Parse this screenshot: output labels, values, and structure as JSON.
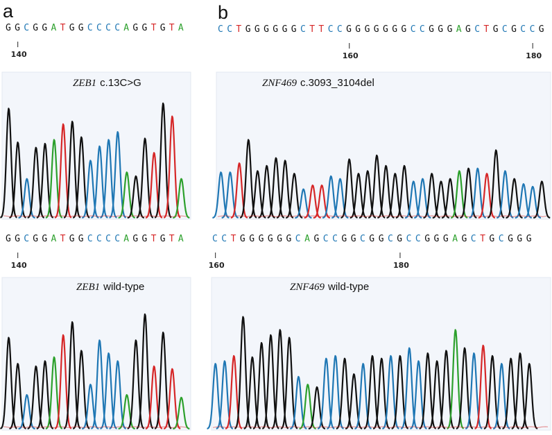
{
  "chart_data": [
    {
      "type": "line",
      "panel": "a",
      "title_gene": "ZEB1",
      "title_variant": "c.13C>G",
      "sequence": "GGCGGATGGCCCCAGGTGTA",
      "ticks": [
        {
          "base": 140,
          "index": 1
        }
      ],
      "colors": {
        "A": "#2ca02c",
        "C": "#1f77b4",
        "G": "#111111",
        "T": "#d62728"
      },
      "peaks": [
        {
          "base": "G",
          "h": 0.84
        },
        {
          "base": "G",
          "h": 0.58
        },
        {
          "base": "C",
          "h": 0.3
        },
        {
          "base": "G",
          "h": 0.54
        },
        {
          "base": "G",
          "h": 0.57
        },
        {
          "base": "A",
          "h": 0.6
        },
        {
          "base": "T",
          "h": 0.72
        },
        {
          "base": "G",
          "h": 0.74
        },
        {
          "base": "G",
          "h": 0.62
        },
        {
          "base": "C",
          "h": 0.44
        },
        {
          "base": "C",
          "h": 0.55
        },
        {
          "base": "C",
          "h": 0.6
        },
        {
          "base": "C",
          "h": 0.66
        },
        {
          "base": "A",
          "h": 0.35
        },
        {
          "base": "G",
          "h": 0.32
        },
        {
          "base": "G",
          "h": 0.61
        },
        {
          "base": "T",
          "h": 0.5
        },
        {
          "base": "G",
          "h": 0.88
        },
        {
          "base": "T",
          "h": 0.78
        },
        {
          "base": "A",
          "h": 0.3
        }
      ]
    },
    {
      "type": "line",
      "panel": "b",
      "title_gene": "ZNF469",
      "title_variant": "c.3093_3104del",
      "sequence": "CCTGGGGGGCTTCCGGGGGGGCCGGGAGCTGCGCCG",
      "ticks": [
        {
          "base": 160,
          "index": 14
        },
        {
          "base": 180,
          "index": 34
        }
      ],
      "colors": {
        "A": "#2ca02c",
        "C": "#1f77b4",
        "G": "#111111",
        "T": "#d62728"
      },
      "peaks": [
        {
          "base": "C",
          "h": 0.35
        },
        {
          "base": "C",
          "h": 0.35
        },
        {
          "base": "T",
          "h": 0.42
        },
        {
          "base": "G",
          "h": 0.6
        },
        {
          "base": "G",
          "h": 0.36
        },
        {
          "base": "G",
          "h": 0.4
        },
        {
          "base": "G",
          "h": 0.46
        },
        {
          "base": "G",
          "h": 0.44
        },
        {
          "base": "G",
          "h": 0.34
        },
        {
          "base": "C",
          "h": 0.22
        },
        {
          "base": "T",
          "h": 0.25
        },
        {
          "base": "T",
          "h": 0.25
        },
        {
          "base": "C",
          "h": 0.32
        },
        {
          "base": "C",
          "h": 0.3
        },
        {
          "base": "G",
          "h": 0.45
        },
        {
          "base": "G",
          "h": 0.34
        },
        {
          "base": "G",
          "h": 0.36
        },
        {
          "base": "G",
          "h": 0.48
        },
        {
          "base": "G",
          "h": 0.4
        },
        {
          "base": "G",
          "h": 0.34
        },
        {
          "base": "G",
          "h": 0.4
        },
        {
          "base": "C",
          "h": 0.28
        },
        {
          "base": "C",
          "h": 0.3
        },
        {
          "base": "G",
          "h": 0.34
        },
        {
          "base": "G",
          "h": 0.28
        },
        {
          "base": "G",
          "h": 0.3
        },
        {
          "base": "A",
          "h": 0.36
        },
        {
          "base": "G",
          "h": 0.38
        },
        {
          "base": "C",
          "h": 0.38
        },
        {
          "base": "T",
          "h": 0.34
        },
        {
          "base": "G",
          "h": 0.52
        },
        {
          "base": "C",
          "h": 0.36
        },
        {
          "base": "G",
          "h": 0.3
        },
        {
          "base": "C",
          "h": 0.26
        },
        {
          "base": "C",
          "h": 0.24
        },
        {
          "base": "G",
          "h": 0.28
        }
      ]
    },
    {
      "type": "line",
      "panel": "a",
      "title_gene": "ZEB1",
      "title_variant": "wild-type",
      "sequence": "GGCGGATGGCCCCAGGTGTA",
      "ticks": [
        {
          "base": 140,
          "index": 1
        }
      ],
      "colors": {
        "A": "#2ca02c",
        "C": "#1f77b4",
        "G": "#111111",
        "T": "#d62728"
      },
      "peaks": [
        {
          "base": "G",
          "h": 0.7
        },
        {
          "base": "G",
          "h": 0.5
        },
        {
          "base": "C",
          "h": 0.26
        },
        {
          "base": "G",
          "h": 0.48
        },
        {
          "base": "G",
          "h": 0.52
        },
        {
          "base": "A",
          "h": 0.55
        },
        {
          "base": "T",
          "h": 0.72
        },
        {
          "base": "G",
          "h": 0.82
        },
        {
          "base": "G",
          "h": 0.6
        },
        {
          "base": "C",
          "h": 0.34
        },
        {
          "base": "C",
          "h": 0.68
        },
        {
          "base": "C",
          "h": 0.58
        },
        {
          "base": "C",
          "h": 0.52
        },
        {
          "base": "A",
          "h": 0.26
        },
        {
          "base": "G",
          "h": 0.68
        },
        {
          "base": "G",
          "h": 0.88
        },
        {
          "base": "T",
          "h": 0.48
        },
        {
          "base": "G",
          "h": 0.74
        },
        {
          "base": "T",
          "h": 0.46
        },
        {
          "base": "A",
          "h": 0.24
        }
      ]
    },
    {
      "type": "line",
      "panel": "b",
      "title_gene": "ZNF469",
      "title_variant": "wild-type",
      "sequence": "CCTGGGGGGCAGCCGGCGGCGCCGGGAGCTGCGGG",
      "ticks": [
        {
          "base": 160,
          "index": 0
        },
        {
          "base": 180,
          "index": 20
        }
      ],
      "colors": {
        "A": "#2ca02c",
        "C": "#1f77b4",
        "G": "#111111",
        "T": "#d62728"
      },
      "peaks": [
        {
          "base": "C",
          "h": 0.5
        },
        {
          "base": "C",
          "h": 0.52
        },
        {
          "base": "T",
          "h": 0.56
        },
        {
          "base": "G",
          "h": 0.86
        },
        {
          "base": "G",
          "h": 0.55
        },
        {
          "base": "G",
          "h": 0.66
        },
        {
          "base": "G",
          "h": 0.72
        },
        {
          "base": "G",
          "h": 0.76
        },
        {
          "base": "G",
          "h": 0.7
        },
        {
          "base": "C",
          "h": 0.4
        },
        {
          "base": "A",
          "h": 0.34
        },
        {
          "base": "G",
          "h": 0.32
        },
        {
          "base": "C",
          "h": 0.54
        },
        {
          "base": "C",
          "h": 0.56
        },
        {
          "base": "G",
          "h": 0.54
        },
        {
          "base": "G",
          "h": 0.42
        },
        {
          "base": "C",
          "h": 0.5
        },
        {
          "base": "G",
          "h": 0.56
        },
        {
          "base": "G",
          "h": 0.54
        },
        {
          "base": "C",
          "h": 0.56
        },
        {
          "base": "G",
          "h": 0.56
        },
        {
          "base": "C",
          "h": 0.62
        },
        {
          "base": "C",
          "h": 0.52
        },
        {
          "base": "G",
          "h": 0.58
        },
        {
          "base": "G",
          "h": 0.52
        },
        {
          "base": "G",
          "h": 0.6
        },
        {
          "base": "A",
          "h": 0.76
        },
        {
          "base": "G",
          "h": 0.62
        },
        {
          "base": "C",
          "h": 0.58
        },
        {
          "base": "T",
          "h": 0.64
        },
        {
          "base": "G",
          "h": 0.56
        },
        {
          "base": "C",
          "h": 0.5
        },
        {
          "base": "G",
          "h": 0.54
        },
        {
          "base": "G",
          "h": 0.58
        },
        {
          "base": "G",
          "h": 0.5
        }
      ]
    }
  ],
  "labels": {
    "panel_a": "a",
    "panel_b": "b"
  }
}
